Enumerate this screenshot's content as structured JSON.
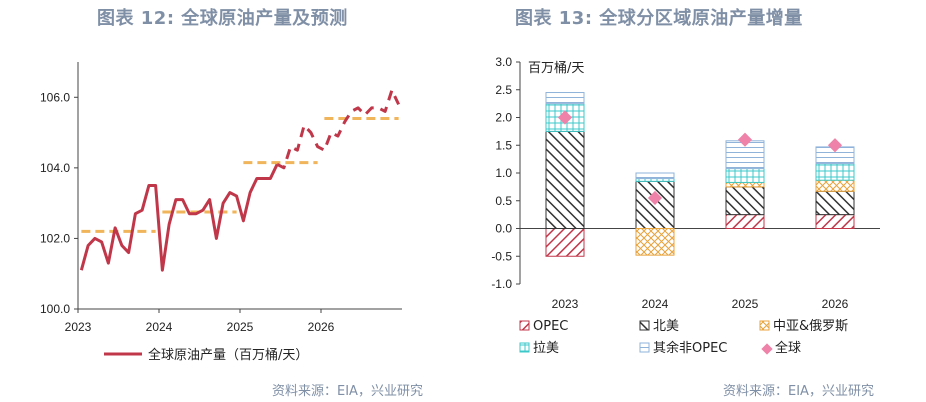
{
  "titles": {
    "left": "图表 12: 全球原油产量及预测",
    "right": "图表 13: 全球分区域原油产量增量"
  },
  "sources": {
    "left": "资料来源：EIA，兴业研究",
    "right": "资料来源：EIA，兴业研究"
  },
  "colors": {
    "line": "#c0374a",
    "annual": "#f0b55a",
    "opec": "#c0374a",
    "na": "#333333",
    "ca": "#e8a33c",
    "la": "#3cc8c8",
    "other": "#8fb3d9",
    "global": "#ee82a8"
  },
  "chart_data": [
    {
      "type": "line",
      "ylim": [
        100.0,
        107.0
      ],
      "yticks": [
        "100.0",
        "102.0",
        "104.0",
        "106.0"
      ],
      "xticks": [
        "2023",
        "2024",
        "2025",
        "2026"
      ],
      "series": [
        {
          "name": "全球原油产量（百万桶/天）",
          "style": "solid-then-dashed",
          "values": [
            101.1,
            101.8,
            102.0,
            101.9,
            101.3,
            102.3,
            101.8,
            101.6,
            102.7,
            102.8,
            103.5,
            103.5,
            101.1,
            102.4,
            103.1,
            103.1,
            102.7,
            102.7,
            102.8,
            103.1,
            102.0,
            103.0,
            103.3,
            103.2,
            102.5,
            103.3,
            103.7,
            103.7,
            103.7,
            104.1,
            104.0,
            104.6,
            104.5,
            105.2,
            105.0,
            104.6,
            104.5,
            105.0,
            104.9,
            105.3,
            105.6,
            105.7,
            105.5,
            105.7,
            105.7,
            105.6,
            106.2,
            105.8
          ],
          "forecast_start_index": 29
        },
        {
          "name": "annual average",
          "segments": [
            {
              "year": "2023",
              "value": 102.2
            },
            {
              "year": "2024",
              "value": 102.75
            },
            {
              "year": "2025",
              "value": 104.15
            },
            {
              "year": "2026",
              "value": 105.4
            }
          ]
        }
      ],
      "legend": "全球原油产量（百万桶/天）"
    },
    {
      "type": "bar",
      "stacked": true,
      "unit": "百万桶/天",
      "ylim": [
        -1.0,
        3.0
      ],
      "yticks": [
        "-1.0",
        "-0.5",
        "0.0",
        "0.5",
        "1.0",
        "1.5",
        "2.0",
        "2.5",
        "3.0"
      ],
      "categories": [
        "2023",
        "2024",
        "2025",
        "2026"
      ],
      "series": [
        {
          "name": "OPEC",
          "values": [
            -0.5,
            0.0,
            0.25,
            0.25
          ]
        },
        {
          "name": "北美",
          "values": [
            1.75,
            0.85,
            0.5,
            0.42
          ]
        },
        {
          "name": "中亚&俄罗斯",
          "values": [
            0.0,
            -0.48,
            0.08,
            0.2
          ]
        },
        {
          "name": "拉美",
          "values": [
            0.5,
            0.05,
            0.25,
            0.3
          ]
        },
        {
          "name": "其余非OPEC",
          "values": [
            0.2,
            0.1,
            0.5,
            0.3
          ]
        }
      ],
      "markers": {
        "name": "全球",
        "values": [
          2.0,
          0.55,
          1.6,
          1.5
        ]
      }
    }
  ]
}
